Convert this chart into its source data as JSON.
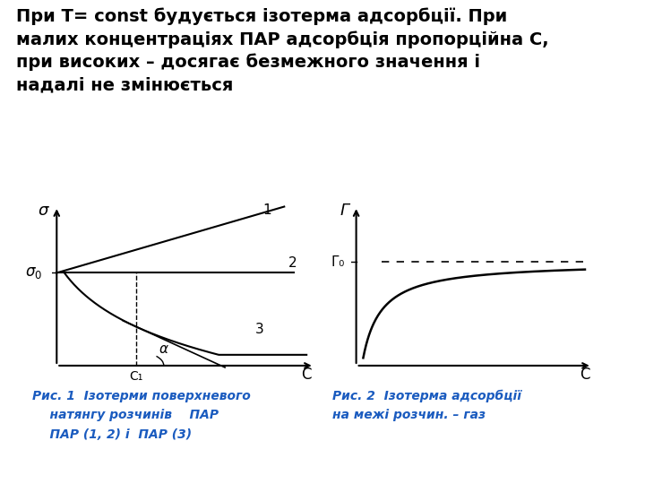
{
  "title_text": "При T= const будується ізотерма адсорбції. При\nмалих концентраціях ПАР адсорбція пропорційна С,\nпри високих – досягає безмежного значення і\nнадалі не змінюється",
  "title_bg": "#ebebeb",
  "plot_bg": "#80e0a0",
  "caption1_line1": "Рис. 1  Ізотерми поверхневого",
  "caption1_line2": "    натянгу розчинів    ПАР",
  "caption1_line3": "    ПАР (1, 2) і  ПАР (3)",
  "caption2_line1": "Рис. 2  Ізотерма адсорбції",
  "caption2_line2": "на межі розчин. – газ",
  "caption_color": "#1a5bbf",
  "fig_bg": "#ffffff"
}
